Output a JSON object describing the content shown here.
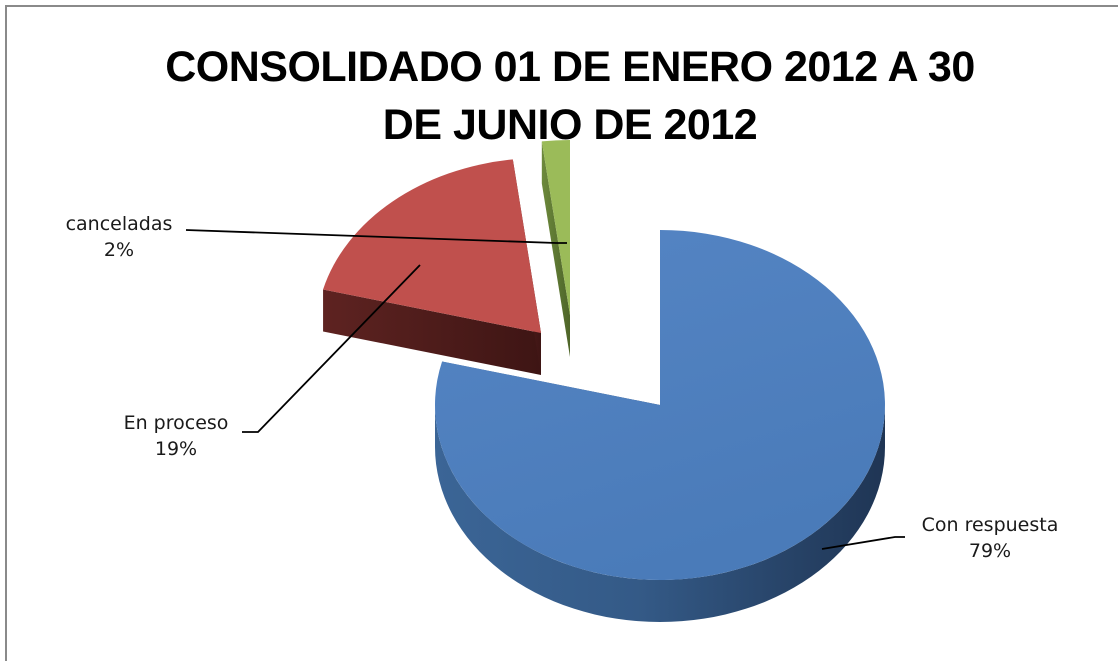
{
  "chart_data": {
    "type": "pie",
    "variant": "3d-exploded",
    "title_lines": [
      "CONSOLIDADO 01  DE  ENERO  2012  A 30",
      "DE JUNIO DE 2012"
    ],
    "slices": [
      {
        "label": "Con respuesta",
        "percent_label": "79%",
        "value": 79,
        "color": "#4F81BD"
      },
      {
        "label": "En proceso",
        "percent_label": "19%",
        "value": 19,
        "color": "#C0504D"
      },
      {
        "label": "canceladas",
        "percent_label": "2%",
        "value": 2,
        "color": "#9BBB59"
      }
    ],
    "legend": "none",
    "data_labels": "outside with leader lines"
  }
}
